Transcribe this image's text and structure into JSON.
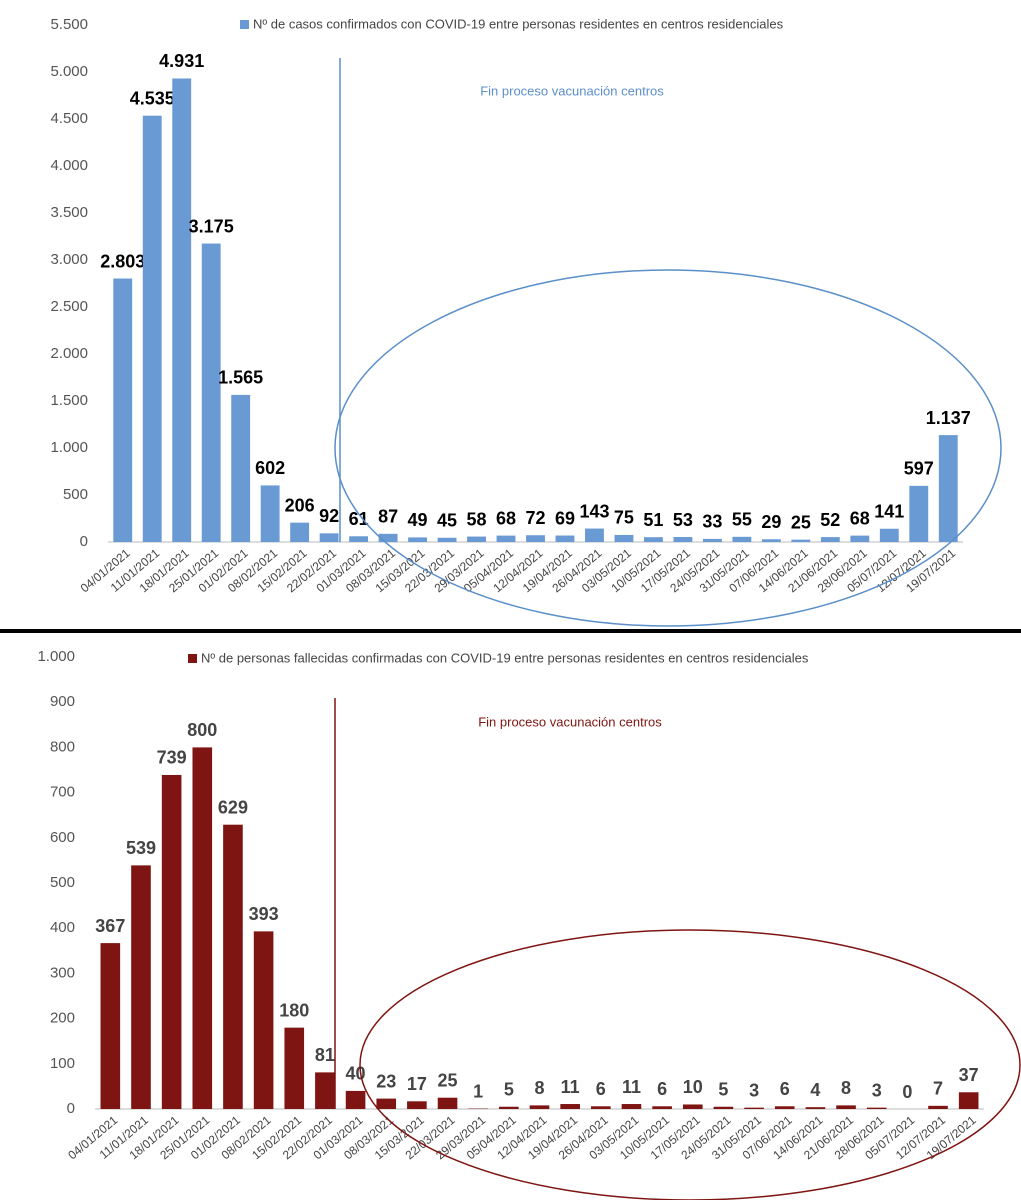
{
  "chart_data": [
    {
      "type": "bar",
      "annotation": "Fin proceso vacunación centros",
      "categories": [
        "04/01/2021",
        "11/01/2021",
        "18/01/2021",
        "25/01/2021",
        "01/02/2021",
        "08/02/2021",
        "15/02/2021",
        "22/02/2021",
        "01/03/2021",
        "08/03/2021",
        "15/03/2021",
        "22/03/2021",
        "29/03/2021",
        "05/04/2021",
        "12/04/2021",
        "19/04/2021",
        "26/04/2021",
        "03/05/2021",
        "10/05/2021",
        "17/05/2021",
        "24/05/2021",
        "31/05/2021",
        "07/06/2021",
        "14/06/2021",
        "21/06/2021",
        "28/06/2021",
        "05/07/2021",
        "12/07/2021",
        "19/07/2021"
      ],
      "series": [
        {
          "name": "Nº de casos confirmados con COVID-19 entre personas residentes en centros residenciales",
          "color": "#6a9ad4",
          "values": [
            2803,
            4535,
            4931,
            3175,
            1565,
            602,
            206,
            92,
            61,
            87,
            49,
            45,
            58,
            68,
            72,
            69,
            143,
            75,
            51,
            53,
            33,
            55,
            29,
            25,
            52,
            68,
            141,
            597,
            1137
          ],
          "value_labels": [
            "2.803",
            "4.535",
            "4.931",
            "3.175",
            "1.565",
            "602",
            "206",
            "92",
            "61",
            "87",
            "49",
            "45",
            "58",
            "68",
            "72",
            "69",
            "143",
            "75",
            "51",
            "53",
            "33",
            "55",
            "29",
            "25",
            "52",
            "68",
            "141",
            "597",
            "1.137"
          ]
        }
      ],
      "ylim": [
        0,
        5500
      ],
      "yticks": [
        0,
        500,
        {
          "value": 1000,
          "label": "1.000"
        },
        {
          "value": 1500,
          "label": "1.500"
        },
        {
          "value": 2000,
          "label": "2.000"
        },
        {
          "value": 2500,
          "label": "2.500"
        },
        {
          "value": 3000,
          "label": "3.000"
        },
        {
          "value": 3500,
          "label": "3.500"
        },
        {
          "value": 4000,
          "label": "4.000"
        },
        {
          "value": 4500,
          "label": "4.500"
        },
        {
          "value": 5000,
          "label": "5.000"
        },
        {
          "value": 5500,
          "label": "5.500"
        }
      ],
      "legend": "top"
    },
    {
      "type": "bar",
      "annotation": "Fin proceso vacunación centros",
      "categories": [
        "04/01/2021",
        "11/01/2021",
        "18/01/2021",
        "25/01/2021",
        "01/02/2021",
        "08/02/2021",
        "15/02/2021",
        "22/02/2021",
        "01/03/2021",
        "08/03/2021",
        "15/03/2021",
        "22/03/2021",
        "29/03/2021",
        "05/04/2021",
        "12/04/2021",
        "19/04/2021",
        "26/04/2021",
        "03/05/2021",
        "10/05/2021",
        "17/05/2021",
        "24/05/2021",
        "31/05/2021",
        "07/06/2021",
        "14/06/2021",
        "21/06/2021",
        "28/06/2021",
        "05/07/2021",
        "12/07/2021",
        "19/07/2021"
      ],
      "series": [
        {
          "name": "Nº de personas fallecidas confirmadas con COVID-19 entre personas residentes en centros residenciales",
          "color": "#7e1512",
          "values": [
            367,
            539,
            739,
            800,
            629,
            393,
            180,
            81,
            40,
            23,
            17,
            25,
            1,
            5,
            8,
            11,
            6,
            11,
            6,
            10,
            5,
            3,
            6,
            4,
            8,
            3,
            0,
            7,
            37
          ]
        }
      ],
      "ylim": [
        0,
        1000
      ],
      "yticks": [
        0,
        100,
        200,
        300,
        400,
        500,
        600,
        700,
        800,
        900,
        {
          "value": 1000,
          "label": "1.000"
        }
      ],
      "legend": "top"
    }
  ]
}
